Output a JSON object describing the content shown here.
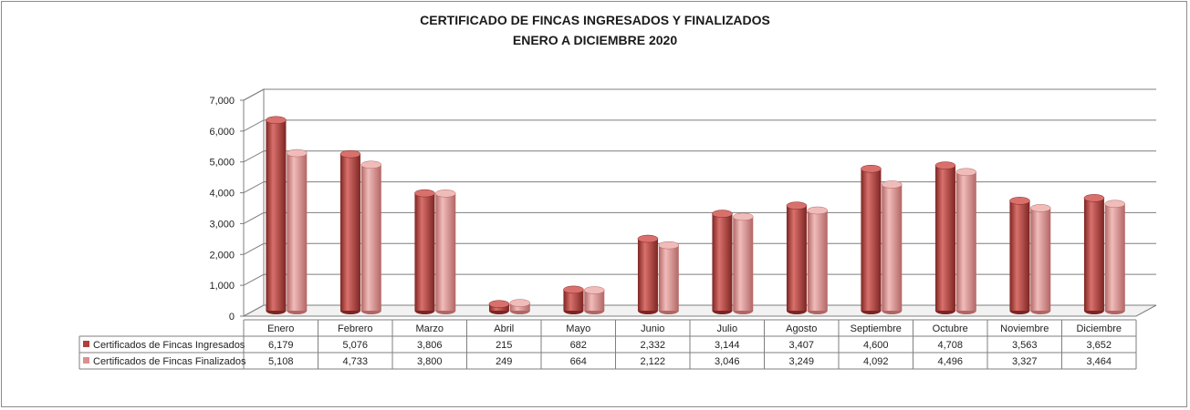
{
  "chart_data": {
    "type": "bar",
    "title": "CERTIFICADO DE FINCAS INGRESADOS Y FINALIZADOS",
    "subtitle": "ENERO A DICIEMBRE 2020",
    "categories": [
      "Enero",
      "Febrero",
      "Marzo",
      "Abril",
      "Mayo",
      "Junio",
      "Julio",
      "Agosto",
      "Septiembre",
      "Octubre",
      "Noviembre",
      "Diciembre"
    ],
    "series": [
      {
        "name": "Certificados de Fincas Ingresados",
        "values": [
          6179,
          5076,
          3806,
          215,
          682,
          2332,
          3144,
          3407,
          4600,
          4708,
          3563,
          3652
        ],
        "labels": [
          "6,179",
          "5,076",
          "3,806",
          "215",
          "682",
          "2,332",
          "3,144",
          "3,407",
          "4,600",
          "4,708",
          "3,563",
          "3,652"
        ],
        "color": "#b0403e",
        "color_dark": "#7d2522",
        "color_light": "#d9706c"
      },
      {
        "name": "Certificados de Fincas Finalizados",
        "values": [
          5108,
          4733,
          3800,
          249,
          664,
          2122,
          3046,
          3249,
          4092,
          4496,
          3327,
          3464
        ],
        "labels": [
          "5,108",
          "4,733",
          "3,800",
          "249",
          "664",
          "2,122",
          "3,046",
          "3,249",
          "4,092",
          "4,496",
          "3,327",
          "3,464"
        ],
        "color": "#d9908e",
        "color_dark": "#b26664",
        "color_light": "#f0bcba"
      }
    ],
    "yticks": [
      "0",
      "1,000",
      "2,000",
      "3,000",
      "4,000",
      "5,000",
      "6,000",
      "7,000"
    ],
    "ylim": [
      0,
      7000
    ],
    "grid": true,
    "legend": "data-table-left"
  }
}
